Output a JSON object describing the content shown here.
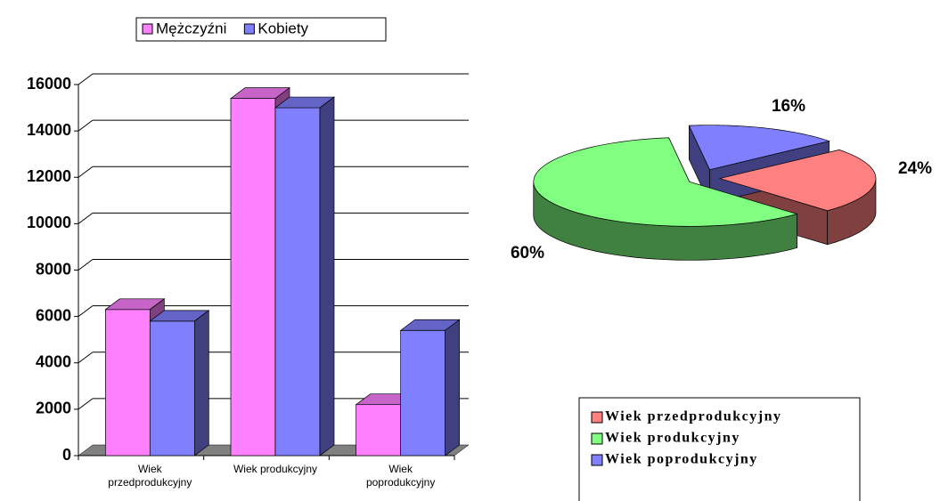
{
  "chart_data": [
    {
      "type": "bar3d",
      "categories": [
        "Wiek przedprodukcyjny",
        "Wiek produkcyjny",
        "Wiek poprodukcyjny"
      ],
      "series": [
        {
          "name": "Mężczyźni",
          "color": "#ff80ff",
          "values": [
            6300,
            15400,
            2200
          ]
        },
        {
          "name": "Kobiety",
          "color": "#8080ff",
          "values": [
            5800,
            15000,
            5400
          ]
        }
      ],
      "ylim": [
        0,
        16000
      ],
      "yticks": [
        0,
        2000,
        4000,
        6000,
        8000,
        10000,
        12000,
        14000,
        16000
      ],
      "grid": true,
      "legend": "top"
    },
    {
      "type": "pie3d",
      "categories": [
        "Wiek przedprodukcyjny",
        "Wiek produkcyjny",
        "Wiek poprodukcyjny"
      ],
      "values": [
        24,
        60,
        16
      ],
      "value_labels": [
        "24%",
        "60%",
        "16%"
      ],
      "colors": [
        "#ff8080",
        "#80ff80",
        "#8080ff"
      ],
      "legend": "bottom-right"
    }
  ]
}
